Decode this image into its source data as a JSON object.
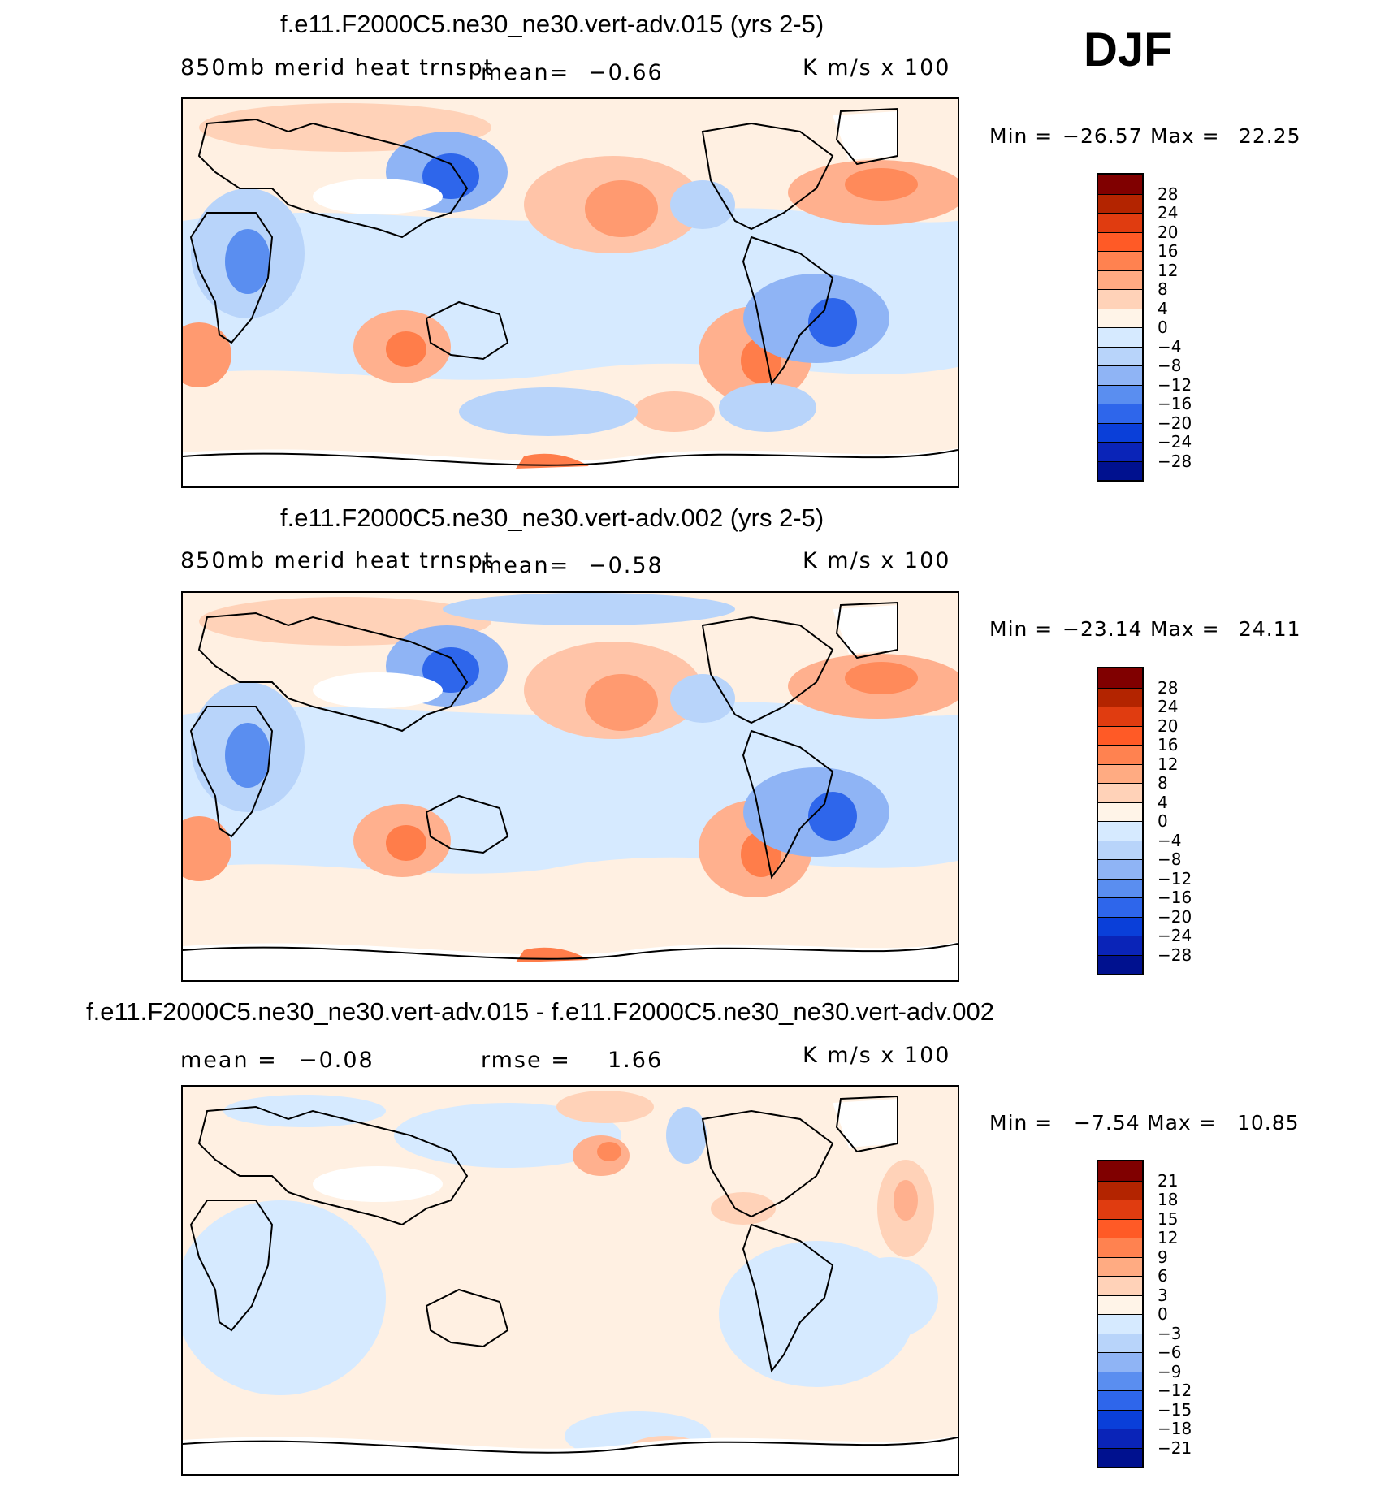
{
  "season": "DJF",
  "panels": [
    {
      "title": "f.e11.F2000C5.ne30_ne30.vert-adv.015 (yrs 2-5)",
      "left_label": "850mb merid heat trnspt",
      "mean_label": "mean=",
      "mean_value": "−0.66",
      "units": "K m/s x 100",
      "min_label": "Min =",
      "min_value": "−26.57",
      "max_label": "Max =",
      "max_value": "22.25",
      "colorbar_ticks": [
        "28",
        "24",
        "20",
        "16",
        "12",
        "8",
        "4",
        "0",
        "−4",
        "−8",
        "−12",
        "−16",
        "−20",
        "−24",
        "−28"
      ]
    },
    {
      "title": "f.e11.F2000C5.ne30_ne30.vert-adv.002 (yrs 2-5)",
      "left_label": "850mb merid heat trnspt",
      "mean_label": "mean=",
      "mean_value": "−0.58",
      "units": "K m/s x 100",
      "min_label": "Min =",
      "min_value": "−23.14",
      "max_label": "Max =",
      "max_value": "24.11",
      "colorbar_ticks": [
        "28",
        "24",
        "20",
        "16",
        "12",
        "8",
        "4",
        "0",
        "−4",
        "−8",
        "−12",
        "−16",
        "−20",
        "−24",
        "−28"
      ]
    },
    {
      "title": "f.e11.F2000C5.ne30_ne30.vert-adv.015 - f.e11.F2000C5.ne30_ne30.vert-adv.002",
      "mean_label": "mean =",
      "mean_value": "−0.08",
      "rmse_label": "rmse =",
      "rmse_value": "1.66",
      "units": "K m/s x 100",
      "min_label": "Min =",
      "min_value": "−7.54",
      "max_label": "Max =",
      "max_value": "10.85",
      "colorbar_ticks": [
        "21",
        "18",
        "15",
        "12",
        "9",
        "6",
        "3",
        "0",
        "−3",
        "−6",
        "−9",
        "−12",
        "−15",
        "−18",
        "−21"
      ]
    }
  ],
  "colorbar_colors": [
    "#800000",
    "#b32400",
    "#e03c10",
    "#ff5a26",
    "#ff8250",
    "#ffab82",
    "#ffd2b8",
    "#fff4e8",
    "#d6eaff",
    "#b8d4fa",
    "#8fb4f5",
    "#5a8ef0",
    "#2e66eb",
    "#0a3fd9",
    "#0a24b8",
    "#00118f"
  ]
}
